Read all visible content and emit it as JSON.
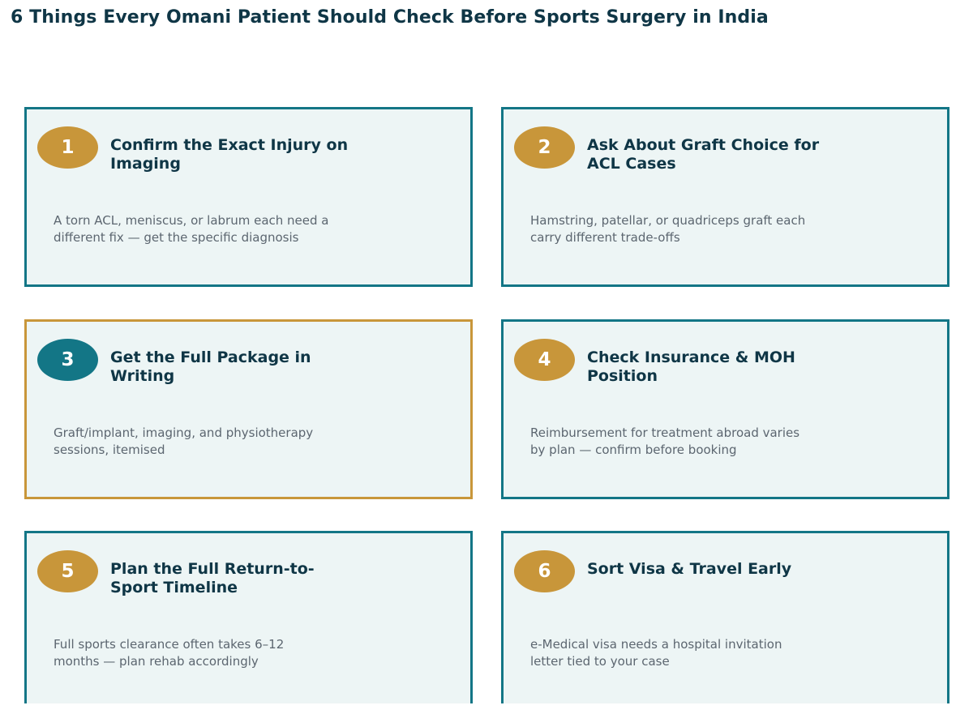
{
  "title": "6 Things Every Omani Patient Should Check Before Sports Surgery in India",
  "colors": {
    "title_text": "#0f3646",
    "card_background": "#edf5f5",
    "card_border": "#137686",
    "highlight_border": "#c8963a",
    "badge_gold": "#c8963a",
    "badge_teal": "#137686",
    "description_text": "#5c6670"
  },
  "items": [
    {
      "number": "1",
      "title": "Confirm the Exact Injury on Imaging",
      "description": "A torn ACL, meniscus, or labrum each need a different fix — get the specific diagnosis",
      "highlighted": false
    },
    {
      "number": "2",
      "title": "Ask About Graft Choice for ACL Cases",
      "description": "Hamstring, patellar, or quadriceps graft each carry different trade-offs",
      "highlighted": false
    },
    {
      "number": "3",
      "title": "Get the Full Package in Writing",
      "description": "Graft/implant, imaging, and physiotherapy sessions, itemised",
      "highlighted": true
    },
    {
      "number": "4",
      "title": "Check Insurance & MOH Position",
      "description": "Reimbursement for treatment abroad varies by plan — confirm before booking",
      "highlighted": false
    },
    {
      "number": "5",
      "title": "Plan the Full Return-to-Sport Timeline",
      "description": "Full sports clearance often takes 6–12 months — plan rehab accordingly",
      "highlighted": false
    },
    {
      "number": "6",
      "title": "Sort Visa & Travel Early",
      "description": "e-Medical visa needs a hospital invitation letter tied to your case",
      "highlighted": false
    }
  ]
}
